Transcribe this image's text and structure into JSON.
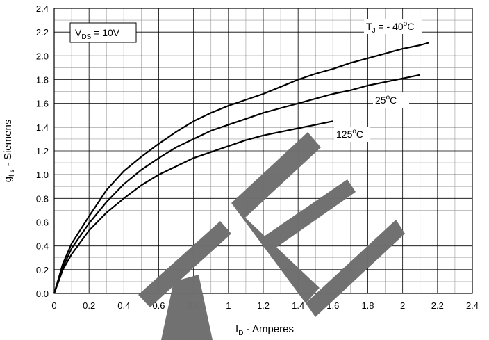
{
  "chart_data": {
    "type": "line",
    "title": "",
    "xlabel": {
      "main": "I",
      "sub": "D",
      "rest": " - Amperes"
    },
    "ylabel": {
      "main": "g",
      "sub": "f s",
      "rest": " - Siemens"
    },
    "xlim": [
      0,
      2.4
    ],
    "ylim": [
      0,
      2.4
    ],
    "x_major_step": 0.2,
    "y_major_step": 0.2,
    "minor_divisions": 2,
    "grid": true,
    "xticks": [
      "0",
      "0.2",
      "0.4",
      "0.6",
      "0.8",
      "1",
      "1.2",
      "1.4",
      "1.6",
      "1.8",
      "2",
      "2.2",
      "2.4"
    ],
    "yticks": [
      "0.0",
      "0.2",
      "0.4",
      "0.6",
      "0.8",
      "1.0",
      "1.2",
      "1.4",
      "1.6",
      "1.8",
      "2.0",
      "2.2",
      "2.4"
    ],
    "condition_box": {
      "main": "V",
      "sub": "DS",
      "rest": " = 10V"
    },
    "series": [
      {
        "label": {
          "main": "T",
          "sub": "J",
          "rest": " = - 40",
          "sup": "o",
          "tail": "C"
        },
        "x": [
          0,
          0.05,
          0.1,
          0.2,
          0.3,
          0.4,
          0.5,
          0.6,
          0.7,
          0.8,
          0.9,
          1.0,
          1.1,
          1.2,
          1.3,
          1.4,
          1.5,
          1.6,
          1.7,
          1.8,
          1.9,
          2.0,
          2.1,
          2.15
        ],
        "y": [
          0,
          0.25,
          0.42,
          0.65,
          0.87,
          1.03,
          1.15,
          1.26,
          1.36,
          1.45,
          1.52,
          1.58,
          1.63,
          1.68,
          1.74,
          1.8,
          1.85,
          1.89,
          1.94,
          1.98,
          2.02,
          2.06,
          2.09,
          2.11
        ]
      },
      {
        "label": {
          "main": "",
          "sub": "",
          "rest": "25",
          "sup": "o",
          "tail": "C"
        },
        "x": [
          0,
          0.05,
          0.1,
          0.2,
          0.3,
          0.4,
          0.5,
          0.6,
          0.7,
          0.8,
          0.9,
          1.0,
          1.1,
          1.2,
          1.3,
          1.4,
          1.5,
          1.6,
          1.7,
          1.8,
          1.9,
          2.0,
          2.1
        ],
        "y": [
          0,
          0.22,
          0.38,
          0.59,
          0.77,
          0.92,
          1.04,
          1.14,
          1.23,
          1.3,
          1.37,
          1.42,
          1.47,
          1.52,
          1.56,
          1.6,
          1.64,
          1.68,
          1.71,
          1.75,
          1.78,
          1.81,
          1.84
        ]
      },
      {
        "label": {
          "main": "",
          "sub": "",
          "rest": "125",
          "sup": "o",
          "tail": "C"
        },
        "x": [
          0,
          0.05,
          0.1,
          0.2,
          0.3,
          0.4,
          0.5,
          0.6,
          0.7,
          0.8,
          0.9,
          1.0,
          1.1,
          1.2,
          1.3,
          1.4,
          1.5,
          1.6
        ],
        "y": [
          0,
          0.2,
          0.33,
          0.53,
          0.68,
          0.8,
          0.91,
          1.0,
          1.07,
          1.14,
          1.19,
          1.24,
          1.29,
          1.33,
          1.36,
          1.39,
          1.42,
          1.45
        ]
      }
    ],
    "watermark_text": "TE"
  }
}
